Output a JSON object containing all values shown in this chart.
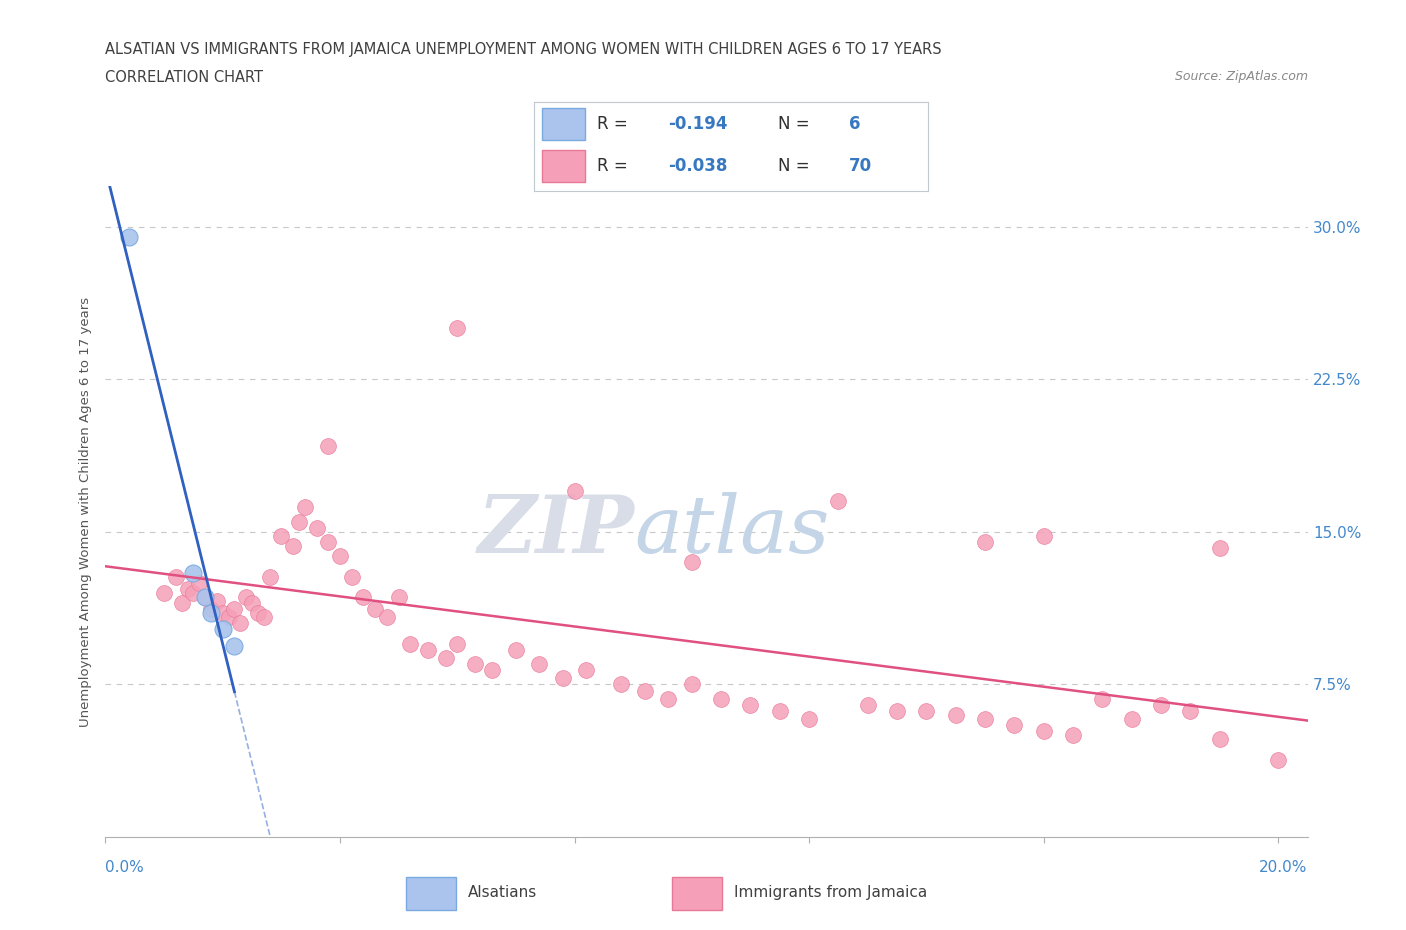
{
  "title_line1": "ALSATIAN VS IMMIGRANTS FROM JAMAICA UNEMPLOYMENT AMONG WOMEN WITH CHILDREN AGES 6 TO 17 YEARS",
  "title_line2": "CORRELATION CHART",
  "source": "Source: ZipAtlas.com",
  "ylabel": "Unemployment Among Women with Children Ages 6 to 17 years",
  "xlim": [
    0.0,
    0.2
  ],
  "ylim": [
    0.0,
    0.32
  ],
  "ytick_vals": [
    0.075,
    0.15,
    0.225,
    0.3
  ],
  "ytick_labels": [
    "7.5%",
    "15.0%",
    "22.5%",
    "30.0%"
  ],
  "alsatian_color": "#aac4ed",
  "alsatian_edge": "#7aaae0",
  "jamaica_color": "#f5a0b8",
  "jamaica_edge": "#e87898",
  "alsatian_line_color": "#3060c0",
  "jamaica_line_color": "#e05080",
  "grid_color": "#c8c8c8",
  "title_color": "#404040",
  "axis_label_color": "#4488cc",
  "text_color": "#404040",
  "source_color": "#888888",
  "legend_text_dark": "#303030",
  "legend_text_blue": "#3878c0",
  "alsatian_x": [
    0.004,
    0.015,
    0.017,
    0.018,
    0.02,
    0.022
  ],
  "alsatian_y": [
    0.295,
    0.13,
    0.118,
    0.11,
    0.102,
    0.094
  ],
  "jamaica_x": [
    0.01,
    0.012,
    0.013,
    0.014,
    0.015,
    0.016,
    0.017,
    0.018,
    0.019,
    0.02,
    0.021,
    0.022,
    0.023,
    0.024,
    0.025,
    0.026,
    0.027,
    0.028,
    0.03,
    0.032,
    0.033,
    0.034,
    0.036,
    0.038,
    0.04,
    0.042,
    0.044,
    0.046,
    0.048,
    0.05,
    0.052,
    0.055,
    0.058,
    0.06,
    0.063,
    0.066,
    0.07,
    0.074,
    0.078,
    0.082,
    0.088,
    0.092,
    0.096,
    0.1,
    0.105,
    0.11,
    0.115,
    0.12,
    0.13,
    0.135,
    0.14,
    0.145,
    0.15,
    0.155,
    0.16,
    0.165,
    0.17,
    0.175,
    0.18,
    0.185,
    0.19,
    0.038,
    0.06,
    0.08,
    0.1,
    0.125,
    0.15,
    0.16,
    0.19,
    0.2
  ],
  "jamaica_y": [
    0.12,
    0.128,
    0.115,
    0.122,
    0.12,
    0.125,
    0.118,
    0.112,
    0.116,
    0.11,
    0.108,
    0.112,
    0.105,
    0.118,
    0.115,
    0.11,
    0.108,
    0.128,
    0.148,
    0.143,
    0.155,
    0.162,
    0.152,
    0.145,
    0.138,
    0.128,
    0.118,
    0.112,
    0.108,
    0.118,
    0.095,
    0.092,
    0.088,
    0.095,
    0.085,
    0.082,
    0.092,
    0.085,
    0.078,
    0.082,
    0.075,
    0.072,
    0.068,
    0.075,
    0.068,
    0.065,
    0.062,
    0.058,
    0.065,
    0.062,
    0.062,
    0.06,
    0.058,
    0.055,
    0.052,
    0.05,
    0.068,
    0.058,
    0.065,
    0.062,
    0.048,
    0.192,
    0.25,
    0.17,
    0.135,
    0.165,
    0.145,
    0.148,
    0.142,
    0.038
  ]
}
